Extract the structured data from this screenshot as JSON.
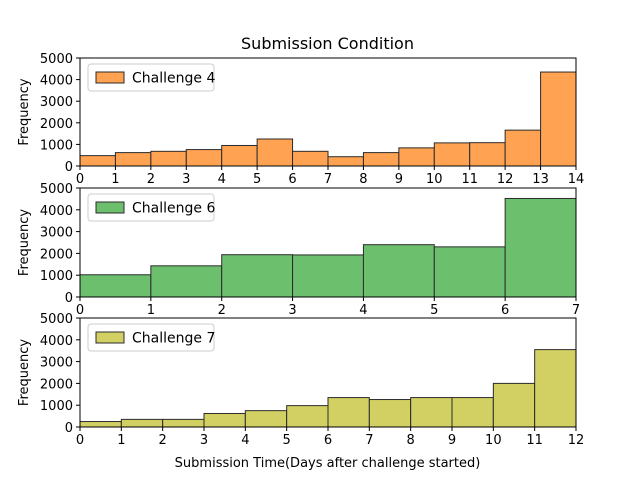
{
  "title": "Submission Condition",
  "xlabel": "Submission Time(Days after challenge started)",
  "ylabel": "Frequency",
  "chart_data": [
    {
      "type": "bar",
      "histogram": true,
      "series_name": "Challenge 4",
      "color": "#ffa352",
      "bin_edges": [
        0,
        1,
        2,
        3,
        4,
        5,
        6,
        7,
        8,
        9,
        10,
        11,
        12,
        13,
        14
      ],
      "values": [
        480,
        620,
        680,
        760,
        950,
        1250,
        680,
        430,
        620,
        840,
        1070,
        1080,
        1660,
        4350
      ],
      "xlim": [
        0,
        14
      ],
      "ylim": [
        0,
        5000
      ],
      "yticks": [
        0,
        1000,
        2000,
        3000,
        4000,
        5000
      ],
      "xticks": [
        0,
        1,
        2,
        3,
        4,
        5,
        6,
        7,
        8,
        9,
        10,
        11,
        12,
        13,
        14
      ],
      "legend_position": "top-left"
    },
    {
      "type": "bar",
      "histogram": true,
      "series_name": "Challenge 6",
      "color": "#6cbf6c",
      "bin_edges": [
        0,
        1,
        2,
        3,
        4,
        5,
        6,
        7
      ],
      "values": [
        1020,
        1430,
        1940,
        1930,
        2400,
        2300,
        4520
      ],
      "xlim": [
        0,
        7
      ],
      "ylim": [
        0,
        5000
      ],
      "yticks": [
        0,
        1000,
        2000,
        3000,
        4000,
        5000
      ],
      "xticks": [
        0,
        1,
        2,
        3,
        4,
        5,
        6,
        7
      ],
      "legend_position": "top-left"
    },
    {
      "type": "bar",
      "histogram": true,
      "series_name": "Challenge 7",
      "color": "#d2d063",
      "bin_edges": [
        0,
        1,
        2,
        3,
        4,
        5,
        6,
        7,
        8,
        9,
        10,
        11,
        12
      ],
      "values": [
        250,
        350,
        350,
        620,
        750,
        980,
        1350,
        1260,
        1350,
        1350,
        2000,
        3550
      ],
      "xlim": [
        0,
        12
      ],
      "ylim": [
        0,
        5000
      ],
      "yticks": [
        0,
        1000,
        2000,
        3000,
        4000,
        5000
      ],
      "xticks": [
        0,
        1,
        2,
        3,
        4,
        5,
        6,
        7,
        8,
        9,
        10,
        11,
        12
      ],
      "legend_position": "top-left"
    }
  ]
}
